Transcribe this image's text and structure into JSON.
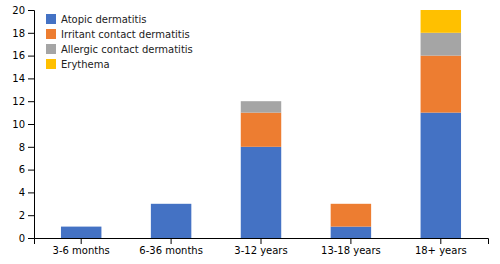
{
  "chart_data": {
    "type": "bar",
    "stacked": true,
    "categories": [
      "3-6 months",
      "6-36 months",
      "3-12 years",
      "13-18 years",
      "18+ years"
    ],
    "series": [
      {
        "name": "Atopic dermatitis",
        "color": "#4472C4",
        "values": [
          1,
          3,
          8,
          1,
          11
        ]
      },
      {
        "name": "Irritant contact dermatitis",
        "color": "#ED7D31",
        "values": [
          0,
          0,
          3,
          2,
          5
        ]
      },
      {
        "name": "Allergic contact dermatitis",
        "color": "#A5A5A5",
        "values": [
          0,
          0,
          1,
          0,
          2
        ]
      },
      {
        "name": "Erythema",
        "color": "#FFC000",
        "values": [
          0,
          0,
          0,
          0,
          2
        ]
      }
    ],
    "ylim": [
      0,
      20
    ],
    "yticks": [
      0,
      2,
      4,
      6,
      8,
      10,
      12,
      14,
      16,
      18,
      20
    ],
    "legend": "upper left",
    "grid": false
  }
}
